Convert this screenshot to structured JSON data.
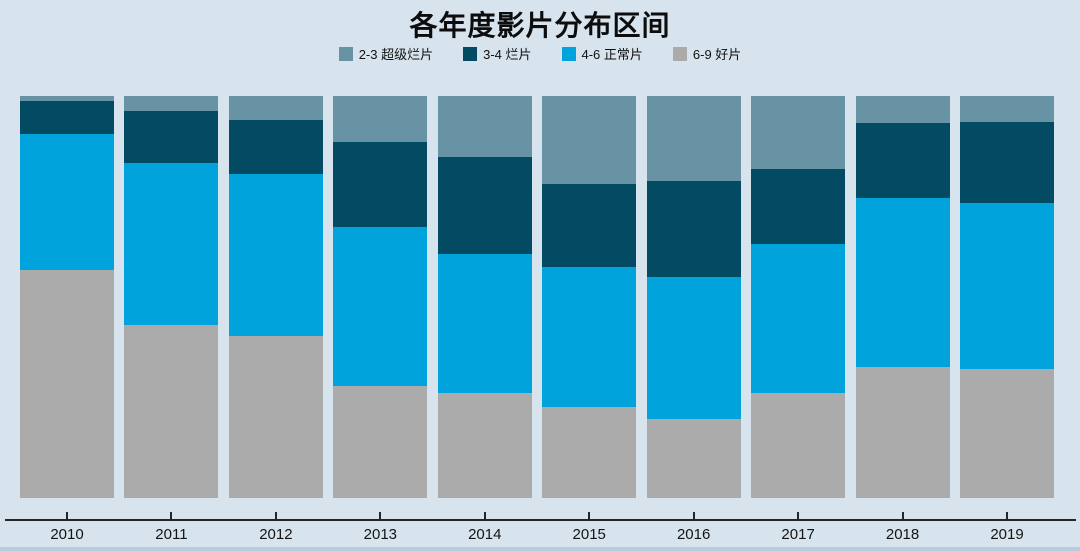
{
  "page": {
    "background_color": "#d7e4ed",
    "bottom_strip_color": "#b6cdde",
    "axis_color": "#262626"
  },
  "chart_data": {
    "type": "bar",
    "stacked": true,
    "percent_stacked": true,
    "title": "各年度影片分布区间",
    "xlabel": "",
    "ylabel": "",
    "ylim": [
      0,
      100
    ],
    "grid": false,
    "legend_position": "top-center",
    "categories": [
      "2010",
      "2011",
      "2012",
      "2013",
      "2014",
      "2015",
      "2016",
      "2017",
      "2018",
      "2019"
    ],
    "series": [
      {
        "label": "2-3 超级烂片",
        "color": "#6893a4",
        "values": [
          1.2,
          3.7,
          6.0,
          11.4,
          15.2,
          21.9,
          21.1,
          18.2,
          6.7,
          6.5
        ]
      },
      {
        "label": "3-4 烂片",
        "color": "#024b63",
        "values": [
          8.2,
          12.9,
          13.4,
          21.1,
          24.1,
          20.7,
          23.9,
          18.7,
          18.7,
          20.1
        ]
      },
      {
        "label": "4-6 正常片",
        "color": "#00a3dc",
        "values": [
          33.8,
          40.3,
          40.3,
          39.6,
          34.6,
          34.8,
          35.3,
          37.1,
          42.0,
          41.3
        ]
      },
      {
        "label": "6-9 好片",
        "color": "#acabab",
        "values": [
          56.8,
          43.1,
          40.3,
          27.9,
          26.1,
          22.6,
          19.7,
          26.0,
          32.6,
          32.1
        ]
      }
    ],
    "stack_order_top_to_bottom": [
      "2-3 超级烂片",
      "3-4 烂片",
      "4-6 正常片",
      "6-9 好片"
    ]
  }
}
